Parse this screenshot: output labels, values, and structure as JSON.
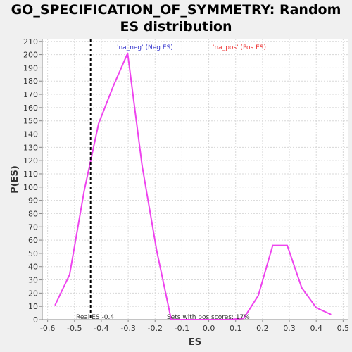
{
  "chart_data": {
    "type": "line",
    "title_lines": [
      "GO_SPECIFICATION_OF_SYMMETRY: Random",
      "ES distribution"
    ],
    "xlabel": "ES",
    "ylabel": "P(ES)",
    "xlim": [
      -0.62,
      0.52
    ],
    "ylim": [
      0,
      212
    ],
    "x_ticks": [
      -0.6,
      -0.5,
      -0.4,
      -0.3,
      -0.2,
      -0.1,
      0.0,
      0.1,
      0.2,
      0.3,
      0.4,
      0.5
    ],
    "x_tick_labels": [
      "-0.6",
      "-0.5",
      "-0.4",
      "-0.3",
      "-0.2",
      "-0.1",
      "0.0",
      "0.1",
      "0.2",
      "0.3",
      "0.4",
      "0.5"
    ],
    "y_ticks": [
      0,
      10,
      20,
      30,
      40,
      50,
      60,
      70,
      80,
      90,
      100,
      110,
      120,
      130,
      140,
      150,
      160,
      170,
      180,
      190,
      200,
      210
    ],
    "grid": true,
    "series": [
      {
        "name": "Random ES",
        "color": "#ee44ee",
        "x": [
          -0.572,
          -0.518,
          -0.464,
          -0.41,
          -0.356,
          -0.302,
          -0.248,
          -0.194,
          -0.14,
          -0.086,
          -0.032,
          0.022,
          0.076,
          0.13,
          0.184,
          0.238,
          0.292,
          0.346,
          0.4,
          0.454
        ],
        "y": [
          11,
          34,
          97,
          148,
          176,
          201,
          116,
          52,
          0,
          0,
          0,
          0,
          0,
          1,
          18,
          56,
          56,
          24,
          9,
          4
        ]
      }
    ],
    "real_es": -0.44,
    "real_es_label": "Real ES -0.4",
    "pos_scores_label": "Sets with pos scores: 17%",
    "legend_neg": "'na_neg' (Neg ES)",
    "legend_pos": "'na_pos' (Pos ES)",
    "colors": {
      "neg": "#3333cc",
      "pos": "#ee3333",
      "line": "#ee44ee",
      "grid": "#d8d8d8",
      "plot_bg": "#ffffff"
    }
  }
}
